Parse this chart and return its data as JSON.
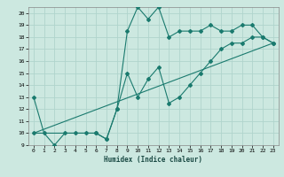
{
  "title": "",
  "xlabel": "Humidex (Indice chaleur)",
  "bg_color": "#cce8e0",
  "line_color": "#1a7a6e",
  "grid_color": "#b0d4cc",
  "xlim": [
    -0.5,
    23.5
  ],
  "ylim": [
    9,
    20.5
  ],
  "xticks": [
    0,
    1,
    2,
    3,
    4,
    5,
    6,
    7,
    8,
    9,
    10,
    11,
    12,
    13,
    14,
    15,
    16,
    17,
    18,
    19,
    20,
    21,
    22,
    23
  ],
  "yticks": [
    9,
    10,
    11,
    12,
    13,
    14,
    15,
    16,
    17,
    18,
    19,
    20
  ],
  "line1_x": [
    0,
    1,
    2,
    3,
    4,
    5,
    6,
    7,
    8,
    9,
    10,
    11,
    12,
    13,
    14,
    15,
    16,
    17,
    18,
    19,
    20,
    21,
    22,
    23
  ],
  "line1_y": [
    13,
    10,
    9,
    10,
    10,
    10,
    10,
    9.5,
    12,
    18.5,
    20.5,
    19.5,
    20.5,
    18,
    18.5,
    18.5,
    18.5,
    19,
    18.5,
    18.5,
    19,
    19,
    18,
    17.5
  ],
  "line2_x": [
    0,
    6,
    7,
    8,
    9,
    10,
    11,
    12,
    13,
    14,
    15,
    16,
    17,
    18,
    19,
    20,
    21,
    22,
    23
  ],
  "line2_y": [
    10,
    10,
    9.5,
    12,
    15,
    13,
    14.5,
    15.5,
    12.5,
    13,
    14,
    15,
    16,
    17,
    17.5,
    17.5,
    18,
    18,
    17.5
  ],
  "line3_x": [
    0,
    23
  ],
  "line3_y": [
    10,
    17.5
  ]
}
